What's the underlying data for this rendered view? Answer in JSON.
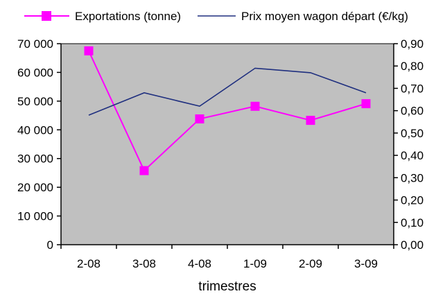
{
  "chart_data": {
    "type": "line",
    "title": "",
    "xlabel": "trimestres",
    "categories": [
      "2-08",
      "3-08",
      "4-08",
      "1-09",
      "2-09",
      "3-09"
    ],
    "y_left": {
      "range": [
        0,
        70000
      ],
      "ticks": [
        0,
        10000,
        20000,
        30000,
        40000,
        50000,
        60000,
        70000
      ],
      "tick_labels": [
        "0",
        "10 000",
        "20 000",
        "30 000",
        "40 000",
        "50 000",
        "60 000",
        "70 000"
      ]
    },
    "y_right": {
      "range": [
        0,
        0.9
      ],
      "ticks": [
        0,
        0.1,
        0.2,
        0.3,
        0.4,
        0.5,
        0.6,
        0.7,
        0.8,
        0.9
      ],
      "tick_labels": [
        "0,00",
        "0,10",
        "0,20",
        "0,30",
        "0,40",
        "0,50",
        "0,60",
        "0,70",
        "0,80",
        "0,90"
      ]
    },
    "series": [
      {
        "name": "Exportations (tonne)",
        "axis": "left",
        "color": "#ff00ff",
        "marker": "square",
        "values": [
          67500,
          25800,
          43800,
          48200,
          43300,
          49100
        ]
      },
      {
        "name": "Prix moyen wagon départ (€/kg)",
        "axis": "right",
        "color": "#1f2f7f",
        "marker": "none",
        "values": [
          0.58,
          0.68,
          0.62,
          0.79,
          0.77,
          0.68
        ]
      }
    ],
    "plot_background": "#c0c0c0",
    "grid": false,
    "legend_position": "top"
  }
}
